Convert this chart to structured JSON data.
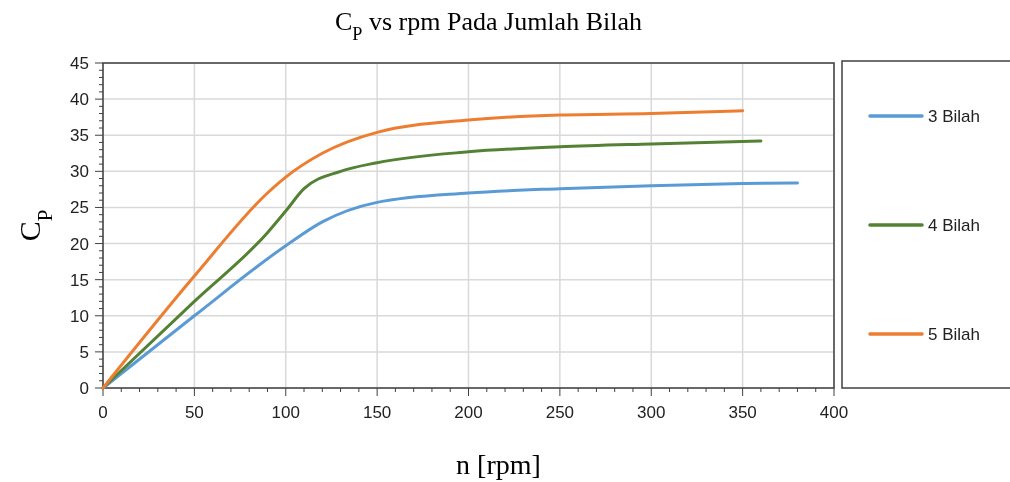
{
  "chart_data": {
    "type": "line",
    "title": "C$_{P}$ vs rpm Pada Jumlah Bilah",
    "xlabel": "n [rpm]",
    "ylabel": "C$_{P}$",
    "xlim": [
      0,
      400
    ],
    "ylim": [
      0,
      45
    ],
    "xticks": [
      0,
      {
        "value": 10,
        "label": null
      },
      {
        "value": 20,
        "label": null
      },
      {
        "value": 30,
        "label": null
      },
      {
        "value": 40,
        "label": null
      },
      50,
      {
        "value": 60,
        "label": null
      },
      {
        "value": 70,
        "label": null
      },
      {
        "value": 80,
        "label": null
      },
      {
        "value": 90,
        "label": null
      },
      100,
      {
        "value": 110,
        "label": null
      },
      {
        "value": 120,
        "label": null
      },
      {
        "value": 130,
        "label": null
      },
      {
        "value": 140,
        "label": null
      },
      150,
      {
        "value": 160,
        "label": null
      },
      {
        "value": 170,
        "label": null
      },
      {
        "value": 180,
        "label": null
      },
      {
        "value": 190,
        "label": null
      },
      200,
      {
        "value": 210,
        "label": null
      },
      {
        "value": 220,
        "label": null
      },
      {
        "value": 230,
        "label": null
      },
      {
        "value": 240,
        "label": null
      },
      250,
      {
        "value": 260,
        "label": null
      },
      {
        "value": 270,
        "label": null
      },
      {
        "value": 280,
        "label": null
      },
      {
        "value": 290,
        "label": null
      },
      300,
      {
        "value": 310,
        "label": null
      },
      {
        "value": 320,
        "label": null
      },
      {
        "value": 330,
        "label": null
      },
      {
        "value": 340,
        "label": null
      },
      350,
      {
        "value": 360,
        "label": null
      },
      {
        "value": 370,
        "label": null
      },
      {
        "value": 380,
        "label": null
      },
      {
        "value": 390,
        "label": null
      },
      400
    ],
    "yticks": [
      0,
      {
        "value": 1,
        "label": null
      },
      {
        "value": 2,
        "label": null
      },
      {
        "value": 3,
        "label": null
      },
      {
        "value": 4,
        "label": null
      },
      5,
      {
        "value": 6,
        "label": null
      },
      {
        "value": 7,
        "label": null
      },
      {
        "value": 8,
        "label": null
      },
      {
        "value": 9,
        "label": null
      },
      10,
      {
        "value": 11,
        "label": null
      },
      {
        "value": 12,
        "label": null
      },
      {
        "value": 13,
        "label": null
      },
      {
        "value": 14,
        "label": null
      },
      15,
      {
        "value": 16,
        "label": null
      },
      {
        "value": 17,
        "label": null
      },
      {
        "value": 18,
        "label": null
      },
      {
        "value": 19,
        "label": null
      },
      20,
      {
        "value": 21,
        "label": null
      },
      {
        "value": 22,
        "label": null
      },
      {
        "value": 23,
        "label": null
      },
      {
        "value": 24,
        "label": null
      },
      25,
      {
        "value": 26,
        "label": null
      },
      {
        "value": 27,
        "label": null
      },
      {
        "value": 28,
        "label": null
      },
      {
        "value": 29,
        "label": null
      },
      30,
      {
        "value": 31,
        "label": null
      },
      {
        "value": 32,
        "label": null
      },
      {
        "value": 33,
        "label": null
      },
      {
        "value": 34,
        "label": null
      },
      35,
      {
        "value": 36,
        "label": null
      },
      {
        "value": 37,
        "label": null
      },
      {
        "value": 38,
        "label": null
      },
      {
        "value": 39,
        "label": null
      },
      40,
      {
        "value": 41,
        "label": null
      },
      {
        "value": 42,
        "label": null
      },
      {
        "value": 43,
        "label": null
      },
      {
        "value": 44,
        "label": null
      },
      45
    ],
    "grid": true,
    "legend": "right",
    "marker": "none",
    "line_style": "solid",
    "series": [
      {
        "name": "3 Bilah",
        "color": "#5b9bd5",
        "x": [
          0,
          50,
          100,
          120,
          150,
          200,
          250,
          300,
          350,
          380
        ],
        "values": [
          0,
          10,
          19.7,
          23,
          25.7,
          27,
          27.6,
          28,
          28.3,
          28.4
        ]
      },
      {
        "name": "4 Bilah",
        "color": "#548235",
        "x": [
          0,
          50,
          90,
          100,
          110,
          130,
          150,
          200,
          250,
          300,
          360
        ],
        "values": [
          0,
          12,
          21.5,
          24.5,
          27.6,
          30,
          31.2,
          32.7,
          33.4,
          33.8,
          34.2
        ]
      },
      {
        "name": "5 Bilah",
        "color": "#ed7d31",
        "x": [
          0,
          50,
          90,
          100,
          120,
          150,
          200,
          250,
          300,
          350
        ],
        "values": [
          0,
          15.5,
          27,
          29.2,
          32.5,
          35.4,
          37.1,
          37.8,
          38,
          38.4
        ]
      }
    ]
  }
}
